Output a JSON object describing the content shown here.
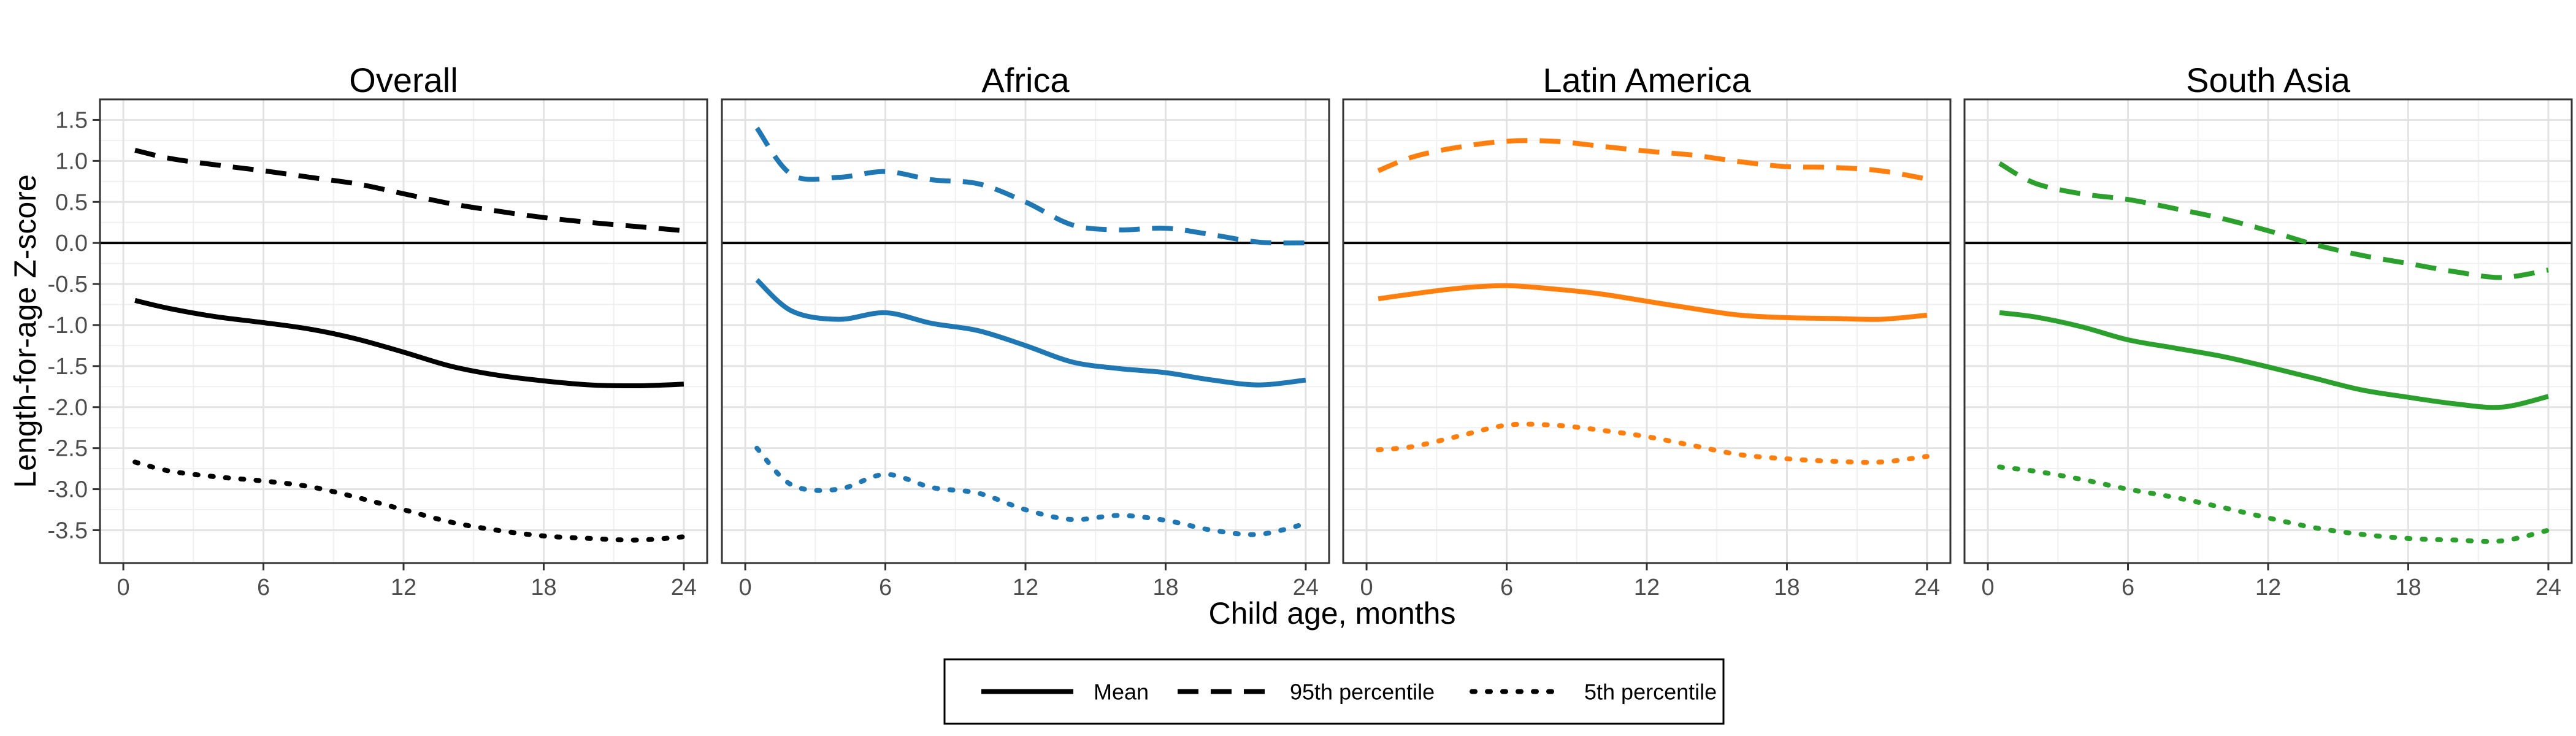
{
  "chart_data": {
    "type": "line",
    "xlabel": "Child age, months",
    "ylabel": "Length-for-age Z-score",
    "xlim": [
      -1,
      25
    ],
    "ylim": [
      -3.9,
      1.75
    ],
    "x_ticks": [
      0,
      6,
      12,
      18,
      24
    ],
    "x_tick_labels": [
      "0",
      "6",
      "12",
      "18",
      "24"
    ],
    "y_ticks": [
      1.5,
      1.0,
      0.5,
      0.0,
      -0.5,
      -1.0,
      -1.5,
      -2.0,
      -2.5,
      -3.0,
      -3.5
    ],
    "y_tick_labels": [
      "1.5",
      "1.0",
      "0.5",
      "0.0",
      "-0.5",
      "-1.0",
      "-1.5",
      "-2.0",
      "-2.5",
      "-3.0",
      "-3.5"
    ],
    "reference_line": 0,
    "grid": true,
    "legend_position": "bottom",
    "legend": [
      {
        "name": "Mean",
        "style": "solid"
      },
      {
        "name": "95th percentile",
        "style": "dashed"
      },
      {
        "name": "5th percentile",
        "style": "dotted"
      }
    ],
    "x": [
      0.5,
      2,
      4,
      6,
      8,
      10,
      12,
      14,
      16,
      18,
      20,
      22,
      24
    ],
    "panels": [
      {
        "title": "Overall",
        "color": "#000000",
        "series": [
          {
            "name": "Mean",
            "style": "solid",
            "values": [
              -0.7,
              -0.8,
              -0.9,
              -0.97,
              -1.05,
              -1.17,
              -1.33,
              -1.5,
              -1.61,
              -1.68,
              -1.73,
              -1.74,
              -1.72
            ]
          },
          {
            "name": "95th percentile",
            "style": "dashed",
            "values": [
              1.13,
              1.03,
              0.95,
              0.88,
              0.8,
              0.72,
              0.6,
              0.48,
              0.39,
              0.31,
              0.25,
              0.2,
              0.15
            ]
          },
          {
            "name": "5th percentile",
            "style": "dotted",
            "values": [
              -2.67,
              -2.78,
              -2.85,
              -2.9,
              -2.97,
              -3.1,
              -3.25,
              -3.4,
              -3.5,
              -3.57,
              -3.6,
              -3.62,
              -3.58
            ]
          }
        ]
      },
      {
        "title": "Africa",
        "color": "#1f77b4",
        "series": [
          {
            "name": "Mean",
            "style": "solid",
            "values": [
              -0.45,
              -0.83,
              -0.93,
              -0.85,
              -0.98,
              -1.07,
              -1.25,
              -1.45,
              -1.53,
              -1.58,
              -1.67,
              -1.73,
              -1.67
            ]
          },
          {
            "name": "95th percentile",
            "style": "dashed",
            "values": [
              1.4,
              0.83,
              0.8,
              0.87,
              0.77,
              0.72,
              0.5,
              0.22,
              0.16,
              0.18,
              0.1,
              0.01,
              0.0
            ]
          },
          {
            "name": "5th percentile",
            "style": "dotted",
            "values": [
              -2.5,
              -2.95,
              -3.0,
              -2.82,
              -2.98,
              -3.05,
              -3.25,
              -3.37,
              -3.32,
              -3.38,
              -3.5,
              -3.55,
              -3.42
            ]
          }
        ]
      },
      {
        "title": "Latin America",
        "color": "#ff7f0e",
        "series": [
          {
            "name": "Mean",
            "style": "solid",
            "values": [
              -0.68,
              -0.62,
              -0.55,
              -0.52,
              -0.56,
              -0.62,
              -0.71,
              -0.8,
              -0.88,
              -0.91,
              -0.92,
              -0.93,
              -0.88
            ]
          },
          {
            "name": "95th percentile",
            "style": "dashed",
            "values": [
              0.88,
              1.05,
              1.17,
              1.24,
              1.24,
              1.18,
              1.12,
              1.07,
              0.99,
              0.93,
              0.92,
              0.88,
              0.78
            ]
          },
          {
            "name": "5th percentile",
            "style": "dotted",
            "values": [
              -2.52,
              -2.48,
              -2.35,
              -2.22,
              -2.22,
              -2.28,
              -2.36,
              -2.47,
              -2.58,
              -2.63,
              -2.66,
              -2.67,
              -2.6
            ]
          }
        ]
      },
      {
        "title": "South Asia",
        "color": "#2ca02c",
        "series": [
          {
            "name": "Mean",
            "style": "solid",
            "values": [
              -0.85,
              -0.9,
              -1.02,
              -1.18,
              -1.28,
              -1.38,
              -1.51,
              -1.65,
              -1.79,
              -1.88,
              -1.96,
              -2.0,
              -1.87
            ]
          },
          {
            "name": "95th percentile",
            "style": "dashed",
            "values": [
              0.97,
              0.73,
              0.6,
              0.53,
              0.42,
              0.3,
              0.15,
              -0.02,
              -0.15,
              -0.25,
              -0.35,
              -0.42,
              -0.33
            ]
          },
          {
            "name": "5th percentile",
            "style": "dotted",
            "values": [
              -2.73,
              -2.78,
              -2.88,
              -3.0,
              -3.1,
              -3.22,
              -3.35,
              -3.47,
              -3.55,
              -3.6,
              -3.62,
              -3.63,
              -3.5
            ]
          }
        ]
      }
    ]
  }
}
